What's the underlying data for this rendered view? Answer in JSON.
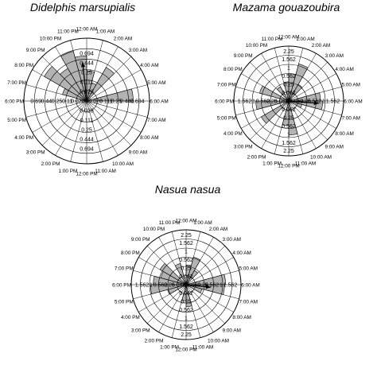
{
  "figure": {
    "background": "#ffffff",
    "bar_fill": "#b3b3b3",
    "line_color": "#000000"
  },
  "chart_data": [
    {
      "type": "rose",
      "title": "Didelphis marsupialis",
      "hour_labels": [
        "12:00 AM",
        "1:00 AM",
        "2:00 AM",
        "3:00 AM",
        "4:00 AM",
        "5:00 AM",
        "6:00 AM",
        "7:00 AM",
        "8:00 AM",
        "9:00 AM",
        "10:00 AM",
        "11:00 AM",
        "12:00 PM",
        "1:00 PM",
        "2:00 PM",
        "3:00 PM",
        "4:00 PM",
        "5:00 PM",
        "6:00 PM",
        "7:00 PM",
        "8:00 PM",
        "9:00 PM",
        "10:00 PM",
        "11:00 PM"
      ],
      "radial_labels_horizontal": [
        "0.028",
        "0.111",
        "0.25",
        "0.444",
        "0.694"
      ],
      "radial_labels_left": [
        "0.028",
        "0.11",
        "0.25",
        "0.44",
        "0.69"
      ],
      "radial_labels_vertical": [
        "0.028",
        "0.111",
        "0.25",
        "0.444",
        "0.694"
      ],
      "bins": [
        {
          "hour": 0.5,
          "value": 0.48
        },
        {
          "hour": 1.5,
          "value": 0.3
        },
        {
          "hour": 2.5,
          "value": 0.62
        },
        {
          "hour": 5.5,
          "value": 0.74
        },
        {
          "hour": 18.5,
          "value": 0.1
        },
        {
          "hour": 19.5,
          "value": 0.4
        },
        {
          "hour": 20.5,
          "value": 0.78
        },
        {
          "hour": 21.5,
          "value": 0.6
        },
        {
          "hour": 22.5,
          "value": 0.82
        },
        {
          "hour": 23.5,
          "value": 0.72
        }
      ],
      "mean_vector": {
        "hour": 23.6,
        "length": 0.62
      }
    },
    {
      "type": "rose",
      "title": "Mazama gouazoubira",
      "hour_labels": [
        "12:00 AM",
        "1:00 AM",
        "2:00 AM",
        "3:00 AM",
        "4:00 AM",
        "5:00 AM",
        "6:00 AM",
        "7:00 AM",
        "8:00 AM",
        "9:00 AM",
        "10:00 AM",
        "11:00 AM",
        "12:00 PM",
        "1:00 PM",
        "2:00 PM",
        "3:00 PM",
        "4:00 PM",
        "5:00 PM",
        "6:00 PM",
        "7:00 PM",
        "8:00 PM",
        "9:00 PM",
        "10:00 PM",
        "11:00 PM"
      ],
      "radial_labels_horizontal": [
        "0.062",
        "0.25",
        "0.562",
        "1",
        "1.562"
      ],
      "radial_labels_left": [
        "0.062",
        "0.25",
        "0.562",
        "1",
        "1.562"
      ],
      "radial_labels_vertical": [
        "0.062",
        "0.25",
        "0.562",
        "1",
        "1.562",
        "2.25"
      ],
      "bins": [
        {
          "hour": 0.5,
          "value": 0.5
        },
        {
          "hour": 1.5,
          "value": 0.7
        },
        {
          "hour": 2.5,
          "value": 0.35
        },
        {
          "hour": 5.5,
          "value": 0.58
        },
        {
          "hour": 6.5,
          "value": 0.62
        },
        {
          "hour": 7.5,
          "value": 0.25
        },
        {
          "hour": 11.5,
          "value": 0.62
        },
        {
          "hour": 12.5,
          "value": 0.45
        },
        {
          "hour": 15.5,
          "value": 0.58
        },
        {
          "hour": 17.5,
          "value": 0.6
        },
        {
          "hour": 19.5,
          "value": 0.55
        },
        {
          "hour": 21.5,
          "value": 0.3
        },
        {
          "hour": 23.5,
          "value": 0.35
        }
      ],
      "mean_vector": {
        "hour": 6.3,
        "length": 0.55
      }
    },
    {
      "type": "rose",
      "title": "Nasua nasua",
      "hour_labels": [
        "12:00 AM",
        "1:00 AM",
        "2:00 AM",
        "3:00 AM",
        "4:00 AM",
        "5:00 AM",
        "6:00 AM",
        "7:00 AM",
        "8:00 AM",
        "9:00 AM",
        "10:00 AM",
        "11:00 AM",
        "12:00 PM",
        "1:00 PM",
        "2:00 PM",
        "3:00 PM",
        "4:00 PM",
        "5:00 PM",
        "6:00 PM",
        "7:00 PM",
        "8:00 PM",
        "9:00 PM",
        "10:00 PM",
        "11:00 PM"
      ],
      "radial_labels_horizontal": [
        "0.062",
        "0.25",
        "0.562",
        "1",
        "1.562"
      ],
      "radial_labels_left": [
        "0.062",
        "0.25",
        "0.562",
        "1",
        "1.562"
      ],
      "radial_labels_vertical": [
        "0.062",
        "0.25",
        "0.562",
        "1",
        "1.562",
        "2.25"
      ],
      "bins": [
        {
          "hour": 0.5,
          "value": 0.36
        },
        {
          "hour": 1.5,
          "value": 0.52
        },
        {
          "hour": 2.5,
          "value": 0.3
        },
        {
          "hour": 5.5,
          "value": 0.72
        },
        {
          "hour": 6.5,
          "value": 0.7
        },
        {
          "hour": 7.5,
          "value": 0.3
        },
        {
          "hour": 11.5,
          "value": 0.4
        },
        {
          "hour": 12.5,
          "value": 0.3
        },
        {
          "hour": 16.5,
          "value": 0.35
        },
        {
          "hour": 17.5,
          "value": 0.65
        },
        {
          "hour": 18.5,
          "value": 0.6
        },
        {
          "hour": 19.5,
          "value": 0.48
        },
        {
          "hour": 20.5,
          "value": 0.55
        },
        {
          "hour": 22.5,
          "value": 0.4
        }
      ],
      "mean_vector": {
        "hour": 6.4,
        "length": 0.45
      }
    }
  ]
}
